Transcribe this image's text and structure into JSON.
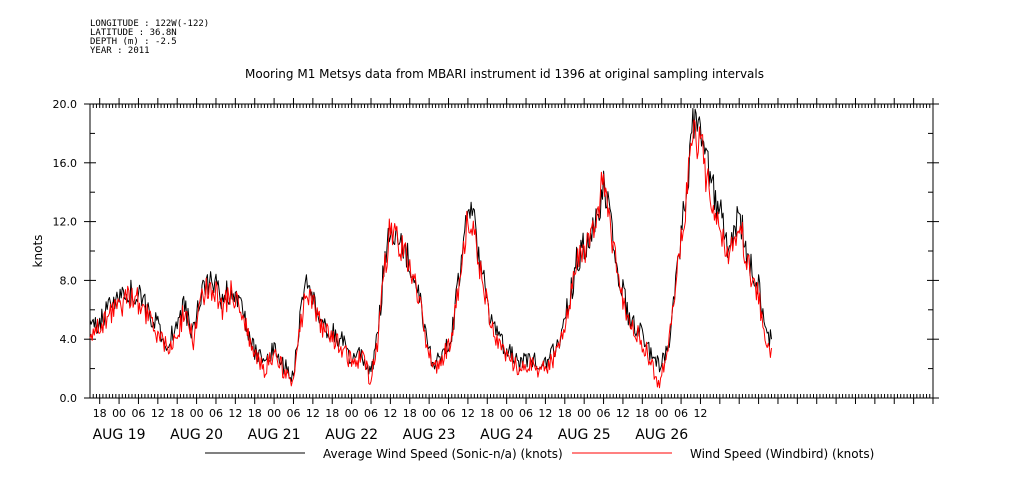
{
  "header": {
    "longitude": "LONGITUDE : 122W(-122)",
    "latitude": "LATITUDE : 36.8N",
    "depth": "DEPTH (m) : -2.5",
    "year": "YEAR : 2011"
  },
  "chart_data": {
    "type": "line",
    "title": "Mooring M1 Metsys data from MBARI instrument id 1396 at original sampling intervals",
    "xlabel": "",
    "ylabel": "knots",
    "ylim": [
      0,
      20
    ],
    "y_ticks": [
      "0.0",
      "4.0",
      "8.0",
      "12.0",
      "16.0",
      "20.0"
    ],
    "xlim_hours": [
      -9,
      252
    ],
    "x_tick_labels": [
      "18",
      "00",
      "06",
      "12",
      "18",
      "00",
      "06",
      "12",
      "18",
      "00",
      "06",
      "12",
      "18",
      "00",
      "06",
      "12",
      "18",
      "00",
      "06",
      "12",
      "18",
      "00",
      "06",
      "12",
      "18",
      "00",
      "06",
      "12",
      "18",
      "00",
      "06",
      "12"
    ],
    "day_labels": [
      "AUG 19",
      "AUG 20",
      "AUG 21",
      "AUG 22",
      "AUG 23",
      "AUG 24",
      "AUG 25",
      "AUG 26"
    ],
    "grid": false,
    "legend_position": "bottom",
    "series": [
      {
        "name": "Average Wind Speed (Sonic-n/a) (knots)",
        "color": "#000000",
        "points": [
          [
            -9,
            4.8
          ],
          [
            -6,
            5.2
          ],
          [
            -3,
            6.0
          ],
          [
            0,
            6.6
          ],
          [
            3,
            7.2
          ],
          [
            6,
            7.0
          ],
          [
            9,
            6.0
          ],
          [
            12,
            4.8
          ],
          [
            15,
            3.8
          ],
          [
            18,
            4.6
          ],
          [
            20,
            6.2
          ],
          [
            23,
            4.4
          ],
          [
            26,
            7.6
          ],
          [
            29,
            8.0
          ],
          [
            32,
            6.6
          ],
          [
            35,
            7.6
          ],
          [
            38,
            6.0
          ],
          [
            42,
            3.2
          ],
          [
            45,
            2.2
          ],
          [
            48,
            3.6
          ],
          [
            51,
            2.2
          ],
          [
            54,
            1.4
          ],
          [
            56,
            5.2
          ],
          [
            58,
            7.8
          ],
          [
            60,
            7.0
          ],
          [
            63,
            5.0
          ],
          [
            66,
            4.4
          ],
          [
            69,
            3.8
          ],
          [
            72,
            2.8
          ],
          [
            75,
            3.2
          ],
          [
            78,
            1.6
          ],
          [
            80,
            4.2
          ],
          [
            82,
            8.8
          ],
          [
            84,
            12.0
          ],
          [
            86,
            11.2
          ],
          [
            89,
            10.0
          ],
          [
            92,
            8.2
          ],
          [
            94,
            5.6
          ],
          [
            97,
            2.4
          ],
          [
            100,
            3.0
          ],
          [
            103,
            4.4
          ],
          [
            106,
            9.2
          ],
          [
            108,
            12.8
          ],
          [
            110,
            11.6
          ],
          [
            112,
            9.0
          ],
          [
            115,
            5.4
          ],
          [
            118,
            3.8
          ],
          [
            121,
            3.0
          ],
          [
            124,
            2.2
          ],
          [
            127,
            2.8
          ],
          [
            130,
            2.2
          ],
          [
            133,
            2.6
          ],
          [
            136,
            3.6
          ],
          [
            139,
            6.2
          ],
          [
            142,
            9.6
          ],
          [
            145,
            10.8
          ],
          [
            148,
            12.4
          ],
          [
            150,
            14.6
          ],
          [
            152,
            12.0
          ],
          [
            155,
            8.2
          ],
          [
            158,
            5.4
          ],
          [
            161,
            4.6
          ],
          [
            164,
            3.2
          ],
          [
            167,
            2.2
          ],
          [
            170,
            3.4
          ],
          [
            173,
            9.2
          ],
          [
            176,
            14.8
          ],
          [
            178,
            19.0
          ],
          [
            180,
            18.0
          ],
          [
            182,
            15.6
          ],
          [
            184,
            14.2
          ],
          [
            186,
            12.6
          ],
          [
            189,
            10.0
          ],
          [
            192,
            12.4
          ],
          [
            195,
            9.2
          ],
          [
            198,
            7.8
          ],
          [
            200,
            4.2
          ],
          [
            202,
            4.0
          ]
        ]
      },
      {
        "name": "Wind Speed (Windbird) (knots)",
        "color": "#ff0000",
        "points": [
          [
            -9,
            4.2
          ],
          [
            -6,
            4.8
          ],
          [
            -3,
            5.6
          ],
          [
            0,
            6.2
          ],
          [
            3,
            6.8
          ],
          [
            6,
            6.6
          ],
          [
            9,
            5.6
          ],
          [
            12,
            4.4
          ],
          [
            15,
            3.4
          ],
          [
            18,
            4.2
          ],
          [
            20,
            5.8
          ],
          [
            23,
            4.0
          ],
          [
            26,
            7.2
          ],
          [
            29,
            7.6
          ],
          [
            32,
            6.2
          ],
          [
            35,
            7.2
          ],
          [
            38,
            5.6
          ],
          [
            42,
            2.8
          ],
          [
            45,
            1.8
          ],
          [
            48,
            3.2
          ],
          [
            51,
            1.8
          ],
          [
            54,
            1.0
          ],
          [
            56,
            4.8
          ],
          [
            58,
            7.4
          ],
          [
            60,
            6.6
          ],
          [
            63,
            4.6
          ],
          [
            66,
            4.0
          ],
          [
            69,
            3.4
          ],
          [
            72,
            2.4
          ],
          [
            75,
            2.8
          ],
          [
            78,
            1.2
          ],
          [
            80,
            3.8
          ],
          [
            82,
            8.4
          ],
          [
            84,
            11.6
          ],
          [
            86,
            10.8
          ],
          [
            89,
            9.6
          ],
          [
            92,
            7.8
          ],
          [
            94,
            5.2
          ],
          [
            97,
            2.0
          ],
          [
            100,
            2.6
          ],
          [
            103,
            4.0
          ],
          [
            106,
            8.8
          ],
          [
            108,
            12.4
          ],
          [
            110,
            11.2
          ],
          [
            112,
            8.6
          ],
          [
            115,
            5.0
          ],
          [
            118,
            3.4
          ],
          [
            121,
            2.6
          ],
          [
            124,
            1.8
          ],
          [
            127,
            2.4
          ],
          [
            130,
            1.8
          ],
          [
            133,
            2.2
          ],
          [
            136,
            3.2
          ],
          [
            139,
            5.8
          ],
          [
            142,
            9.2
          ],
          [
            145,
            10.4
          ],
          [
            148,
            12.0
          ],
          [
            150,
            15.6
          ],
          [
            152,
            11.6
          ],
          [
            155,
            7.8
          ],
          [
            158,
            5.0
          ],
          [
            161,
            4.2
          ],
          [
            164,
            2.8
          ],
          [
            167,
            1.0
          ],
          [
            170,
            3.0
          ],
          [
            173,
            8.8
          ],
          [
            176,
            14.4
          ],
          [
            178,
            18.0
          ],
          [
            180,
            17.2
          ],
          [
            182,
            15.0
          ],
          [
            184,
            13.6
          ],
          [
            186,
            12.0
          ],
          [
            189,
            9.6
          ],
          [
            192,
            12.0
          ],
          [
            195,
            8.8
          ],
          [
            198,
            7.2
          ],
          [
            200,
            3.6
          ],
          [
            202,
            3.4
          ]
        ]
      }
    ]
  }
}
